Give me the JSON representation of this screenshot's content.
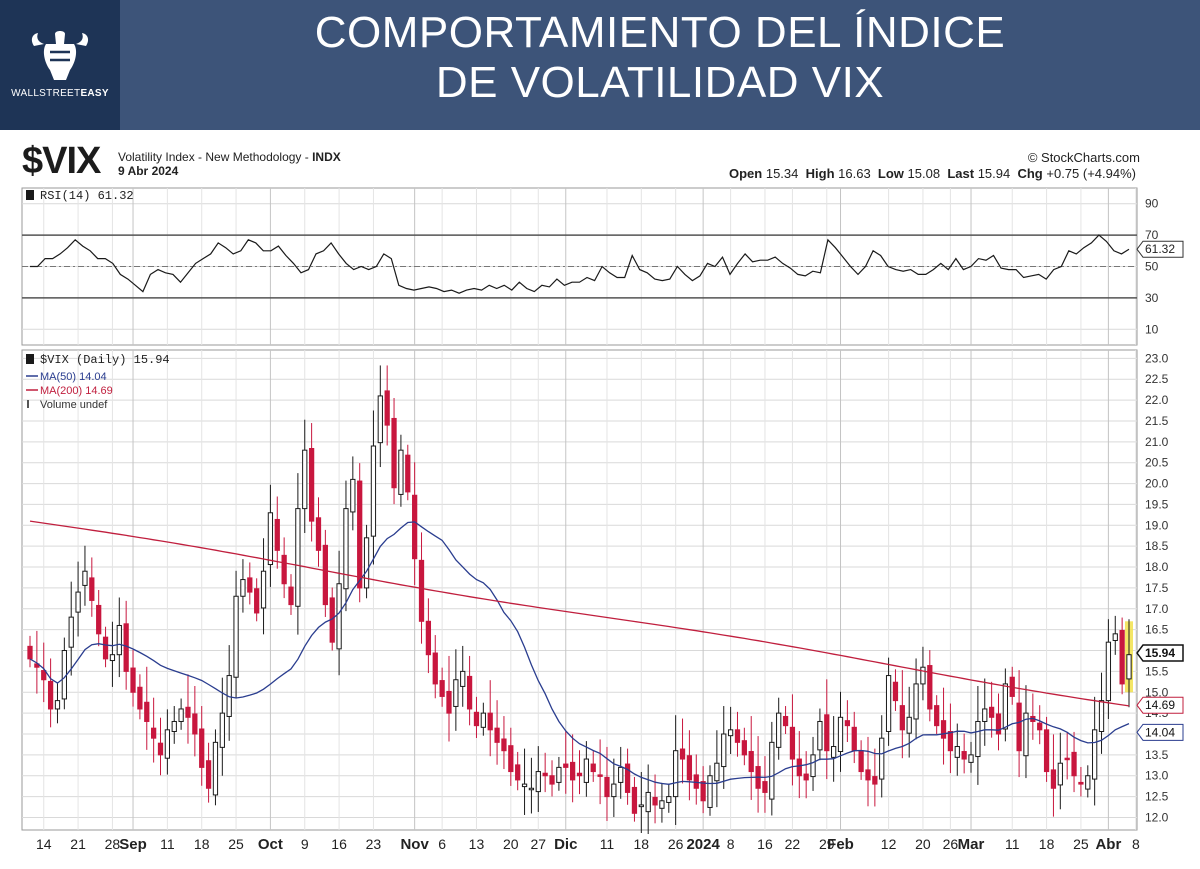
{
  "header": {
    "title_line1": "COMPORTAMIENTO DEL ÍNDICE",
    "title_line2": "DE VOLATILIDAD VIX",
    "brand_light": "WALLSTREET",
    "brand_bold": "EASY",
    "logo_icon": "bull-fist-icon"
  },
  "info": {
    "symbol": "$VIX",
    "description_prefix": "Volatility Index - New Methodology - ",
    "description_bold": "INDX",
    "date": "9 Abr 2024",
    "credit": "© StockCharts.com",
    "open_label": "Open",
    "open": "15.34",
    "high_label": "High",
    "high": "16.63",
    "low_label": "Low",
    "low": "15.08",
    "last_label": "Last",
    "last": "15.94",
    "chg_label": "Chg",
    "chg": "+0.75 (+4.94%)"
  },
  "colors": {
    "up": "#1a1a1a",
    "down": "#c8173e",
    "ma50": "#2a3d8f",
    "ma200": "#c01f3e",
    "highlight": "#f2e24b",
    "grid": "#d9d9d9"
  },
  "chart_data": [
    {
      "type": "line",
      "legend_label": "RSI(14) 61.32",
      "ylim": [
        0,
        100
      ],
      "y_ticks": [
        "90",
        "70",
        "50",
        "30",
        "10"
      ],
      "current_label": "61.32",
      "levels": [
        70,
        50,
        30
      ],
      "values": [
        50,
        50,
        55,
        55,
        58,
        62,
        67,
        63,
        60,
        55,
        55,
        52,
        45,
        42,
        38,
        34,
        45,
        48,
        46,
        45,
        40,
        46,
        52,
        55,
        58,
        65,
        62,
        58,
        60,
        67,
        65,
        60,
        60,
        63,
        57,
        52,
        46,
        48,
        58,
        60,
        65,
        58,
        52,
        48,
        50,
        48,
        50,
        58,
        55,
        38,
        36,
        35,
        36,
        37,
        36,
        34,
        35,
        33,
        35,
        36,
        35,
        38,
        36,
        38,
        35,
        40,
        36,
        34,
        38,
        37,
        42,
        38,
        40,
        40,
        43,
        41,
        50,
        46,
        43,
        43,
        57,
        48,
        46,
        42,
        41,
        42,
        50,
        45,
        41,
        44,
        52,
        50,
        56,
        45,
        52,
        58,
        53,
        54,
        54,
        56,
        52,
        49,
        45,
        44,
        47,
        46,
        67,
        62,
        56,
        50,
        45,
        50,
        60,
        57,
        50,
        48,
        47,
        48,
        45,
        45,
        48,
        52,
        48,
        55,
        48,
        50,
        55,
        54,
        57,
        49,
        48,
        48,
        43,
        44,
        45,
        42,
        48,
        50,
        60,
        58,
        62,
        65,
        70,
        66,
        60,
        58,
        61
      ]
    },
    {
      "type": "candlestick",
      "legend_label": "$VIX (Daily) 15.94",
      "ma50_label": "MA(50) 14.04",
      "ma200_label": "MA(200) 14.69",
      "volume_label": "Volume undef",
      "ylim": [
        11.7,
        23.2
      ],
      "y_ticks": [
        "23.0",
        "22.5",
        "22.0",
        "21.5",
        "21.0",
        "20.5",
        "20.0",
        "19.5",
        "19.0",
        "18.5",
        "18.0",
        "17.5",
        "17.0",
        "16.5",
        "16.0",
        "15.5",
        "15.0",
        "14.5",
        "14.0",
        "13.5",
        "13.0",
        "12.5",
        "12.0"
      ],
      "last_label": "15.94",
      "ma200_end_label": "14.69",
      "ma50_end_label": "14.04",
      "x_labels": [
        {
          "i": 2,
          "t": "14",
          "b": false
        },
        {
          "i": 7,
          "t": "21",
          "b": false
        },
        {
          "i": 12,
          "t": "28",
          "b": false
        },
        {
          "i": 15,
          "t": "Sep",
          "b": true
        },
        {
          "i": 20,
          "t": "11",
          "b": false
        },
        {
          "i": 25,
          "t": "18",
          "b": false
        },
        {
          "i": 30,
          "t": "25",
          "b": false
        },
        {
          "i": 35,
          "t": "Oct",
          "b": true
        },
        {
          "i": 40,
          "t": "9",
          "b": false
        },
        {
          "i": 45,
          "t": "16",
          "b": false
        },
        {
          "i": 50,
          "t": "23",
          "b": false
        },
        {
          "i": 56,
          "t": "Nov",
          "b": true
        },
        {
          "i": 60,
          "t": "6",
          "b": false
        },
        {
          "i": 65,
          "t": "13",
          "b": false
        },
        {
          "i": 70,
          "t": "20",
          "b": false
        },
        {
          "i": 74,
          "t": "27",
          "b": false
        },
        {
          "i": 78,
          "t": "Dic",
          "b": true
        },
        {
          "i": 84,
          "t": "11",
          "b": false
        },
        {
          "i": 89,
          "t": "18",
          "b": false
        },
        {
          "i": 94,
          "t": "26",
          "b": false
        },
        {
          "i": 98,
          "t": "2024",
          "b": true
        },
        {
          "i": 102,
          "t": "8",
          "b": false
        },
        {
          "i": 107,
          "t": "16",
          "b": false
        },
        {
          "i": 111,
          "t": "22",
          "b": false
        },
        {
          "i": 116,
          "t": "29",
          "b": false
        },
        {
          "i": 118,
          "t": "Feb",
          "b": true
        },
        {
          "i": 125,
          "t": "12",
          "b": false
        },
        {
          "i": 130,
          "t": "20",
          "b": false
        },
        {
          "i": 134,
          "t": "26",
          "b": false
        },
        {
          "i": 137,
          "t": "Mar",
          "b": true
        },
        {
          "i": 143,
          "t": "11",
          "b": false
        },
        {
          "i": 148,
          "t": "18",
          "b": false
        },
        {
          "i": 153,
          "t": "25",
          "b": false
        },
        {
          "i": 157,
          "t": "Abr",
          "b": true
        },
        {
          "i": 161,
          "t": "8",
          "b": false
        }
      ],
      "closes": [
        15.8,
        15.6,
        15.3,
        14.6,
        14.8,
        16.0,
        16.8,
        17.4,
        17.9,
        17.2,
        16.4,
        15.8,
        15.9,
        16.6,
        15.5,
        15.0,
        14.6,
        14.3,
        13.9,
        13.5,
        14.1,
        14.3,
        14.6,
        14.4,
        14.0,
        13.2,
        12.7,
        13.8,
        14.5,
        15.4,
        17.3,
        17.7,
        17.4,
        16.9,
        17.9,
        19.3,
        18.4,
        17.6,
        17.1,
        19.4,
        20.8,
        19.1,
        18.4,
        17.1,
        16.2,
        17.6,
        19.4,
        20.1,
        17.5,
        18.7,
        20.9,
        22.1,
        21.4,
        19.9,
        20.8,
        19.8,
        18.2,
        16.7,
        15.9,
        15.2,
        14.9,
        14.5,
        15.3,
        15.5,
        14.6,
        14.2,
        14.5,
        14.1,
        13.8,
        13.6,
        13.1,
        12.9,
        12.8,
        12.7,
        13.1,
        13.0,
        12.8,
        13.2,
        13.2,
        12.9,
        13.0,
        13.4,
        13.1,
        13.0,
        12.5,
        12.8,
        13.2,
        12.6,
        12.1,
        12.3,
        12.6,
        12.3,
        12.4,
        12.5,
        13.6,
        13.4,
        12.9,
        12.7,
        12.4,
        13.0,
        13.3,
        14.0,
        14.1,
        13.8,
        13.5,
        13.1,
        12.7,
        12.6,
        13.8,
        14.5,
        14.2,
        13.4,
        13.0,
        12.9,
        13.5,
        14.3,
        13.6,
        13.7,
        14.4,
        14.2,
        13.6,
        13.1,
        12.9,
        12.8,
        13.9,
        15.4,
        14.8,
        14.1,
        14.4,
        15.2,
        15.6,
        14.6,
        14.2,
        13.9,
        13.6,
        13.7,
        13.4,
        13.5,
        14.3,
        14.6,
        14.4,
        14.0,
        15.2,
        14.9,
        13.6,
        14.5,
        14.3,
        14.1,
        13.1,
        12.7,
        13.3,
        13.4,
        13.0,
        12.8,
        13.0,
        14.1,
        14.8,
        16.2,
        16.4,
        15.2,
        15.9
      ]
    }
  ]
}
